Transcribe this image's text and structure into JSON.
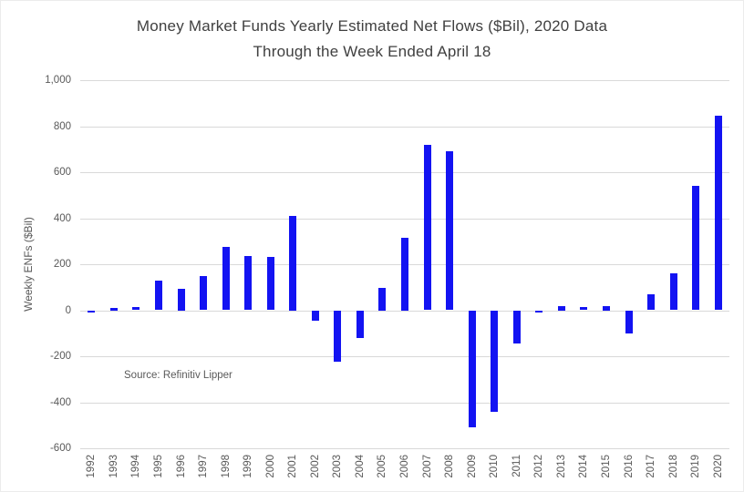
{
  "title": {
    "line1": "Money Market Funds Yearly Estimated Net Flows ($Bil), 2020 Data",
    "line2": "Through the Week Ended April 18"
  },
  "source": "Source: Refinitiv Lipper",
  "chart_data": {
    "type": "bar",
    "title": "Money Market Funds Yearly Estimated Net Flows ($Bil), 2020 Data Through the Week Ended April 18",
    "xlabel": "",
    "ylabel": "Weekly ENFs ($Bil)",
    "ylim": [
      -600,
      1000
    ],
    "ytick_interval": 200,
    "grid": true,
    "legend": "none",
    "bar_color": "#1313f2",
    "gridline_color": "#d9d9d9",
    "text_color": "#595959",
    "title_color": "#404040",
    "source": "Source: Refinitiv Lipper",
    "categories": [
      "1992",
      "1993",
      "1994",
      "1995",
      "1996",
      "1997",
      "1998",
      "1999",
      "2000",
      "2001",
      "2002",
      "2003",
      "2004",
      "2005",
      "2006",
      "2007",
      "2008",
      "2009",
      "2010",
      "2011",
      "2012",
      "2013",
      "2014",
      "2015",
      "2016",
      "2017",
      "2018",
      "2019",
      "2020"
    ],
    "values": [
      -8,
      10,
      15,
      130,
      95,
      148,
      275,
      235,
      230,
      410,
      -45,
      -225,
      -120,
      97,
      315,
      720,
      690,
      -510,
      -440,
      -145,
      -6,
      20,
      13,
      18,
      -100,
      70,
      160,
      540,
      845
    ],
    "yticks": [
      {
        "label": "1,000",
        "value": 1000
      },
      {
        "label": "800",
        "value": 800
      },
      {
        "label": "600",
        "value": 600
      },
      {
        "label": "400",
        "value": 400
      },
      {
        "label": "200",
        "value": 200
      },
      {
        "label": "0",
        "value": 0
      },
      {
        "label": "-200",
        "value": -200
      },
      {
        "label": "-400",
        "value": -400
      },
      {
        "label": "-600",
        "value": -600
      }
    ]
  }
}
